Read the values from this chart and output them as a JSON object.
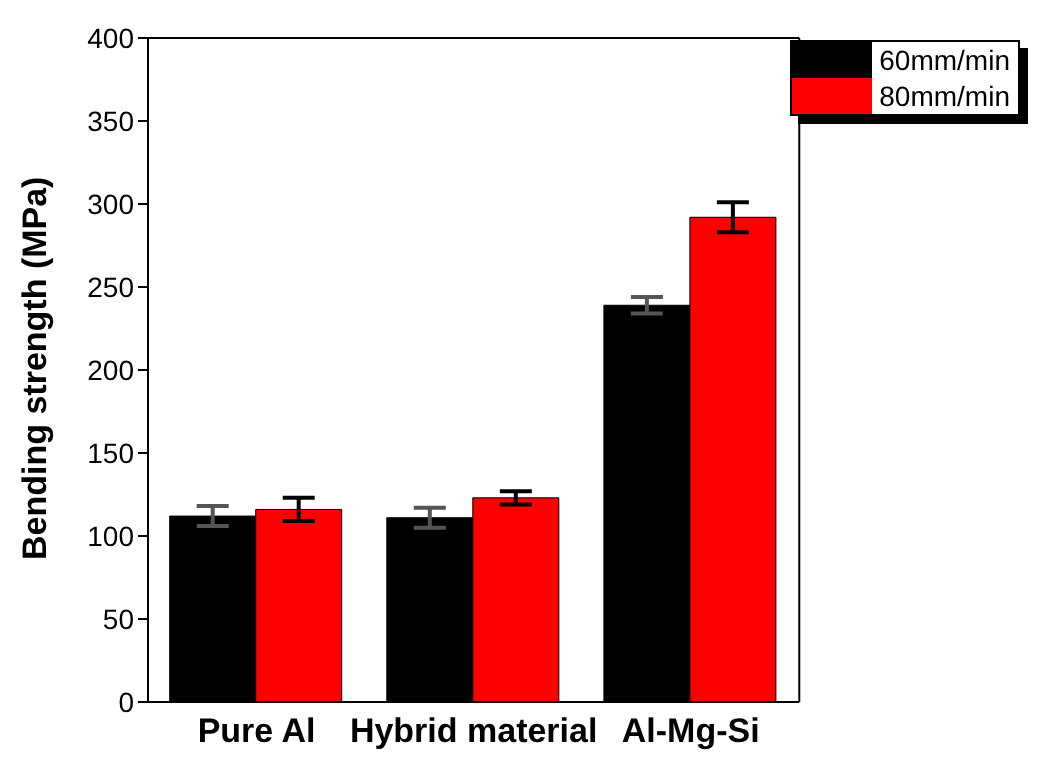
{
  "chart_data": {
    "type": "bar",
    "ylabel": "Bending strength (MPa)",
    "categories": [
      "Pure Al",
      "Hybrid material",
      "Al-Mg-Si"
    ],
    "series": [
      {
        "name": "60mm/min",
        "color": "#000000",
        "values": [
          112,
          111,
          239
        ],
        "errors": [
          6,
          6,
          5
        ]
      },
      {
        "name": "80mm/min",
        "color": "#ff0000",
        "values": [
          116,
          123,
          292
        ],
        "errors": [
          7,
          4,
          9
        ]
      }
    ],
    "ylim": [
      0,
      400
    ],
    "yticks": [
      0,
      50,
      100,
      150,
      200,
      250,
      300,
      350,
      400
    ],
    "grid": false,
    "legend": "top right"
  }
}
